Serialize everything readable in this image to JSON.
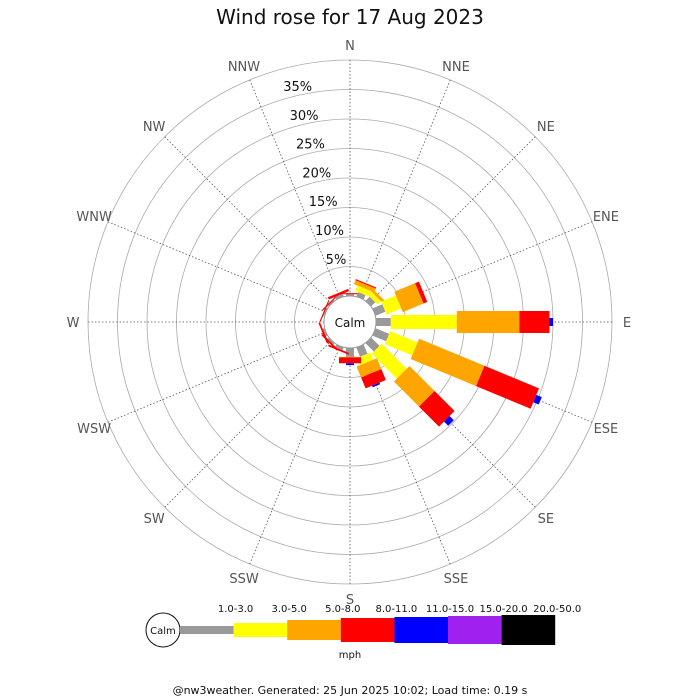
{
  "chart_data": {
    "type": "wind-rose",
    "title": "Wind rose for 17 Aug 2023",
    "directions": [
      "N",
      "NNE",
      "NE",
      "ENE",
      "E",
      "ESE",
      "SE",
      "SSE",
      "S",
      "SSW",
      "SW",
      "WSW",
      "W",
      "WNW",
      "NW",
      "NNW"
    ],
    "rings_percent": [
      5,
      10,
      15,
      20,
      25,
      30,
      35
    ],
    "ring_labels": [
      "5%",
      "10%",
      "15%",
      "20%",
      "25%",
      "30%",
      "35%"
    ],
    "rmax_percent": 40,
    "calm_label": "Calm",
    "speed_bins": [
      {
        "label": "",
        "color": "#999999"
      },
      {
        "label": "1.0-3.0",
        "color": "#ffff00"
      },
      {
        "label": "3.0-5.0",
        "color": "#ffa500"
      },
      {
        "label": "5.0-8.0",
        "color": "#ff0000"
      },
      {
        "label": "8.0-11.0",
        "color": "#0000ff"
      },
      {
        "label": "11.0-15.0",
        "color": "#a020f0"
      },
      {
        "label": "15.0-20.0",
        "color": "#000000"
      },
      {
        "label": "20.0-50.0",
        "color": "#000000"
      }
    ],
    "legend_unit": "mph",
    "series": [
      {
        "direction": "N",
        "cumulative": [
          0.3,
          0.3,
          0.3,
          0.5,
          0.5
        ]
      },
      {
        "direction": "NNE",
        "cumulative": [
          0.8,
          1.8,
          2.5,
          2.7,
          2.7
        ]
      },
      {
        "direction": "NE",
        "cumulative": [
          1.0,
          1.8,
          2.3,
          2.3,
          2.3
        ]
      },
      {
        "direction": "ENE",
        "cumulative": [
          1.8,
          4.5,
          8.3,
          9.0,
          9.0
        ]
      },
      {
        "direction": "E",
        "cumulative": [
          2.5,
          13.7,
          24.3,
          29.4,
          30.0
        ]
      },
      {
        "direction": "ESE",
        "cumulative": [
          2.5,
          7.5,
          19.5,
          29.5,
          30.5
        ]
      },
      {
        "direction": "SE",
        "cumulative": [
          2.0,
          8.0,
          14.0,
          18.8,
          19.8
        ]
      },
      {
        "direction": "SSE",
        "cumulative": [
          1.7,
          3.0,
          5.0,
          7.0,
          7.3
        ]
      },
      {
        "direction": "S",
        "cumulative": [
          1.5,
          1.5,
          1.6,
          2.6,
          2.9
        ]
      },
      {
        "direction": "SSW",
        "cumulative": [
          0.5,
          0.5,
          0.5,
          0.8,
          0.8
        ]
      },
      {
        "direction": "SW",
        "cumulative": [
          0.3,
          0.3,
          0.3,
          0.6,
          0.6
        ]
      },
      {
        "direction": "WSW",
        "cumulative": [
          0.3,
          0.3,
          0.3,
          0.6,
          0.6
        ]
      },
      {
        "direction": "W",
        "cumulative": [
          0.0,
          0.0,
          0.0,
          0.0,
          0.0
        ]
      },
      {
        "direction": "WNW",
        "cumulative": [
          0.2,
          0.2,
          0.2,
          0.4,
          0.4
        ]
      },
      {
        "direction": "NW",
        "cumulative": [
          0.2,
          0.2,
          0.2,
          0.4,
          0.4
        ]
      },
      {
        "direction": "NNW",
        "cumulative": [
          0.5,
          0.5,
          0.5,
          0.9,
          0.9
        ]
      }
    ]
  },
  "footer": "@nw3weather. Generated: 25 Jun 2025 10:02; Load time: 0.19 s"
}
